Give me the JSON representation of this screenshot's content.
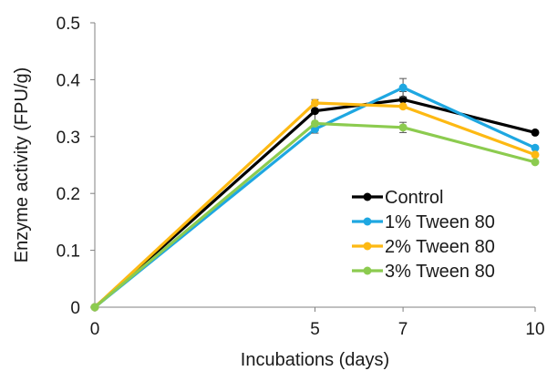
{
  "chart_data": {
    "type": "line",
    "title": "",
    "xlabel": "Incubations (days)",
    "ylabel": "Enzyme activity (FPU/g)",
    "x": [
      0,
      5,
      7,
      10
    ],
    "x_tick_labels": [
      "0",
      "5",
      "7",
      "10"
    ],
    "xlim": [
      0,
      10
    ],
    "ylim": [
      0,
      0.5
    ],
    "y_ticks": [
      0,
      0.1,
      0.2,
      0.3,
      0.4,
      0.5
    ],
    "y_tick_labels": [
      "0",
      "0.1",
      "0.2",
      "0.3",
      "0.4",
      "0.5"
    ],
    "grid": false,
    "legend_position": "bottom-right",
    "series": [
      {
        "name": "Control",
        "color": "#000000",
        "values": [
          0,
          0.345,
          0.365,
          0.307
        ],
        "errors": [
          0,
          0.02,
          0.014,
          0.0
        ]
      },
      {
        "name": "1% Tween 80",
        "color": "#1EA7E1",
        "values": [
          0,
          0.313,
          0.386,
          0.28
        ],
        "errors": [
          0,
          0.007,
          0.016,
          0.0
        ]
      },
      {
        "name": "2% Tween 80",
        "color": "#FDB913",
        "values": [
          0,
          0.359,
          0.353,
          0.268
        ],
        "errors": [
          0,
          0.0,
          0.0,
          0.0
        ]
      },
      {
        "name": "3% Tween 80",
        "color": "#8CCB4F",
        "values": [
          0,
          0.323,
          0.316,
          0.255
        ],
        "errors": [
          0,
          0.0,
          0.009,
          0.0
        ]
      }
    ]
  }
}
